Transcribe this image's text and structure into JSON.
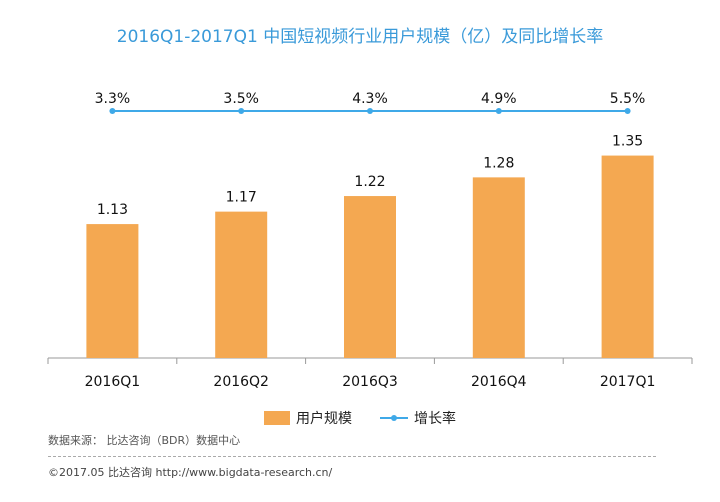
{
  "colors": {
    "bar": "#f4a851",
    "line": "#3fa9e8",
    "title": "#3a9ad9",
    "axis": "#9a9a9a"
  },
  "chart_data": {
    "type": "bar",
    "title": "2016Q1-2017Q1 中国短视频行业用户规模（亿）及同比增长率",
    "categories": [
      "2016Q1",
      "2016Q2",
      "2016Q3",
      "2016Q4",
      "2017Q1"
    ],
    "series": [
      {
        "name": "用户规模",
        "type": "bar",
        "values": [
          1.13,
          1.17,
          1.22,
          1.28,
          1.35
        ],
        "labels": [
          "1.13",
          "1.17",
          "1.22",
          "1.28",
          "1.35"
        ]
      },
      {
        "name": "增长率",
        "type": "line",
        "values": [
          3.3,
          3.5,
          4.3,
          4.9,
          5.5
        ],
        "labels": [
          "3.3%",
          "3.5%",
          "4.3%",
          "4.9%",
          "5.5%"
        ]
      }
    ],
    "ylim": [
      0.7,
      1.4
    ],
    "grid": false,
    "legend_position": "bottom"
  },
  "source_text": "数据来源： 比达咨询（BDR）数据中心",
  "copyright_text": "©2017.05  比达咨询 http://www.bigdata-research.cn/"
}
